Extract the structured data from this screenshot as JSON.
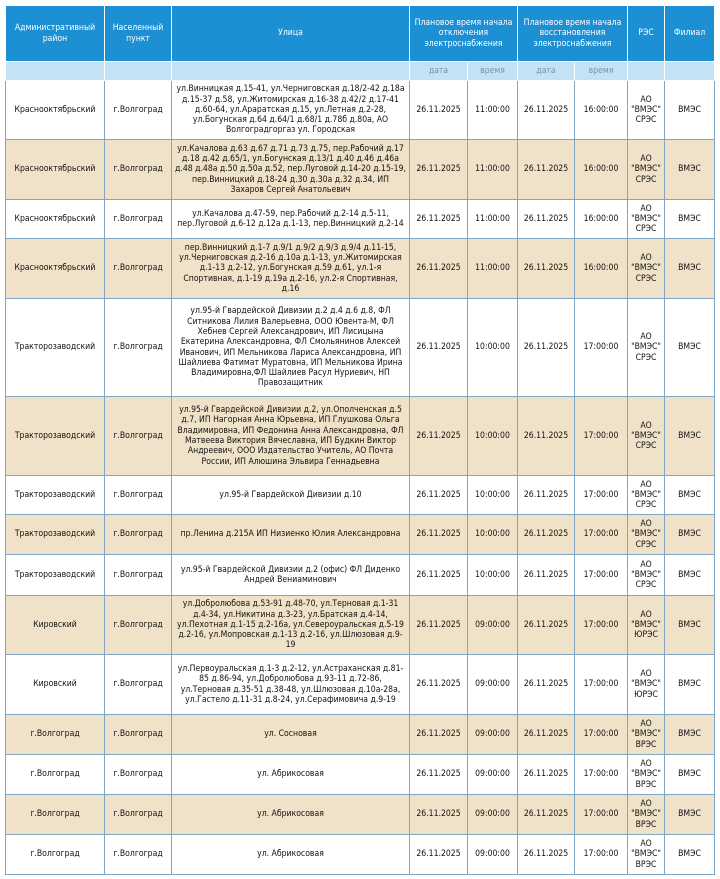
{
  "header": {
    "cells": [
      "Административный район",
      "Населенный пункт",
      "Улица",
      "Плановое время начала отключения электроснабжения",
      "Плановое время начала восстановления электроснабжения",
      "РЭС",
      "Филиал"
    ],
    "sub": [
      "дата",
      "время",
      "дата",
      "время"
    ]
  },
  "table": {
    "rows": [
      [
        "Краснооктябрьский",
        "г.Волгоград",
        "ул.Винницкая д.15-41, ул.Черниговская д.18/2-42 д.18а д.15-37 д.58, ул.Житомирская д.16-38 д.42/2 д.17-41 д.60-64, ул.Араратская д.15, ул.Летная д.2-28, ул.Богунская д.64 д.64/1 д.68/1 д.78б д.80а, АО Волгоградгоргаз ул. Городская",
        "26.11.2025",
        "11:00:00",
        "26.11.2025",
        "16:00:00",
        "АО \"ВМЭС\" СРЭС",
        "ВМЭС"
      ],
      [
        "Краснооктябрьский",
        "г.Волгоград",
        "ул.Качалова д.63 д.67 д.71 д.73 д.75, пер.Рабочий д.17 д.18 д.42 д.65/1, ул.Богунская д.13/1 д.40 д.46 д.46а д.48 д.48а д.50 д.50а д.52, пер.Луговой д.14-20 д.15-19, пер.Винницкий д.18-24 д.30 д.30а д.32 д.34, ИП Захаров Сергей Анатольевич",
        "26.11.2025",
        "11:00:00",
        "26.11.2025",
        "16:00:00",
        "АО \"ВМЭС\" СРЭС",
        "ВМЭС"
      ],
      [
        "Краснооктябрьский",
        "г.Волгоград",
        "ул.Качалова д.47-59, пер.Рабочий д.2-14 д.5-11, пер.Луговой д.6-12 д.12а д.1-13, пер.Винницкий д.2-14",
        "26.11.2025",
        "11:00:00",
        "26.11.2025",
        "16:00:00",
        "АО \"ВМЭС\" СРЭС",
        "ВМЭС"
      ],
      [
        "Краснооктябрьский",
        "г.Волгоград",
        "пер.Винницкий д.1-7 д.9/1 д.9/2 д.9/3 д.9/4 д.11-15, ул.Черниговская д.2-16 д.10а д.1-13, ул.Житомирская д.1-13 д.2-12, ул.Богунская д.59 д.61, ул.1-я Спортивная, д.1-19 д.19а д.2-16, ул.2-я Спортивная, д.16",
        "26.11.2025",
        "11:00:00",
        "26.11.2025",
        "16:00:00",
        "АО \"ВМЭС\" СРЭС",
        "ВМЭС"
      ],
      [
        "Тракторозаводский",
        "г.Волгоград",
        "ул.95-й Гвардейской Дивизии д.2 д.4 д.6 д.8, ФЛ Ситникова Лилия Валерьевна, ООО Ювента-М, ФЛ Хебнев Сергей Александрович, ИП Лисицына Екатерина Александровна, ФЛ Смольянинов Алексей Иванович, ИП Мельникова Лариса Александровна, ИП Шайлиева Фатимат Муратовна, ИП Мельникова Ирина Владимировна,ФЛ Шайлиев Расул Нуриевич, НП Правозащитник",
        "26.11.2025",
        "10:00:00",
        "26.11.2025",
        "17:00:00",
        "АО \"ВМЭС\" СРЭС",
        "ВМЭС"
      ],
      [
        "Тракторозаводский",
        "г.Волгоград",
        "ул.95-й Гвардейской Дивизии д.2, ул.Ополченская д.5 д.7, ИП Нагорная Анна Юрьевна, ИП Глушкова Ольга Владимировна, ИП Федонина Анна Александровна, ФЛ Матвеева Виктория Вячеславна, ИП Будкин Виктор Андреевич, ООО Издательство Учитель, АО Почта России, ИП Алюшина Эльвира Геннадьевна",
        "26.11.2025",
        "10:00:00",
        "26.11.2025",
        "17:00:00",
        "АО \"ВМЭС\" СРЭС",
        "ВМЭС"
      ],
      [
        "Тракторозаводский",
        "г.Волгоград",
        "ул.95-й Гвардейской Дивизии д.10",
        "26.11.2025",
        "10:00:00",
        "26.11.2025",
        "17:00:00",
        "АО \"ВМЭС\" СРЭС",
        "ВМЭС"
      ],
      [
        "Тракторозаводский",
        "г.Волгоград",
        "пр.Ленина д.215А ИП Низиенко Юлия Александровна",
        "26.11.2025",
        "10:00:00",
        "26.11.2025",
        "17:00:00",
        "АО \"ВМЭС\" СРЭС",
        "ВМЭС"
      ],
      [
        "Тракторозаводский",
        "г.Волгоград",
        "ул.95-й Гвардейской Дивизии д.2 (офис) ФЛ Диденко Андрей Вениаминович",
        "26.11.2025",
        "10:00:00",
        "26.11.2025",
        "17:00:00",
        "АО \"ВМЭС\" СРЭС",
        "ВМЭС"
      ],
      [
        "Кировский",
        "г.Волгоград",
        "ул.Добролюбова д.53-91 д.48-70, ул.Терновая д.1-31 д.4-34, ул.Никитина д.3-23, ул.Братская д.4-14, ул.Пехотная д.1-15 д.2-16а, ул.Североуральская д.5-19 д.2-16, ул.Мопровская д.1-13 д.2-16, ул.Шлюзовая д.9-19",
        "26.11.2025",
        "09:00:00",
        "26.11.2025",
        "17:00:00",
        "АО \"ВМЭС\" ЮРЭС",
        "ВМЭС"
      ],
      [
        "Кировский",
        "г.Волгоград",
        "ул.Первоуральская д.1-3 д.2-12, ул.Астраханская д.81-85 д.86-94, ул.Добролюбова д.93-11 д.72-86, ул.Терновая д.35-51 д.38-48, ул.Шлюзовая д.10а-28а, ул.Гастело д.11-31 д.8-24, ул.Серафимовича д.9-19",
        "26.11.2025",
        "09:00:00",
        "26.11.2025",
        "17:00:00",
        "АО \"ВМЭС\" ЮРЭС",
        "ВМЭС"
      ],
      [
        "г.Волгоград",
        "г.Волгоград",
        "ул. Сосновая",
        "26.11.2025",
        "09:00:00",
        "26.11.2025",
        "17:00:00",
        "АО \"ВМЭС\" ВРЭС",
        "ВМЭС"
      ],
      [
        "г.Волгоград",
        "г.Волгоград",
        "ул. Абрикосовая",
        "26.11.2025",
        "09:00:00",
        "26.11.2025",
        "17:00:00",
        "АО \"ВМЭС\" ВРЭС",
        "ВМЭС"
      ],
      [
        "г.Волгоград",
        "г.Волгоград",
        "ул. Абрикосовая",
        "26.11.2025",
        "09:00:00",
        "26.11.2025",
        "17:00:00",
        "АО \"ВМЭС\" ВРЭС",
        "ВМЭС"
      ],
      [
        "г.Волгоград",
        "г.Волгоград",
        "ул. Абрикосовая",
        "26.11.2025",
        "09:00:00",
        "26.11.2025",
        "17:00:00",
        "АО \"ВМЭС\" ВРЭС",
        "ВМЭС"
      ]
    ]
  }
}
